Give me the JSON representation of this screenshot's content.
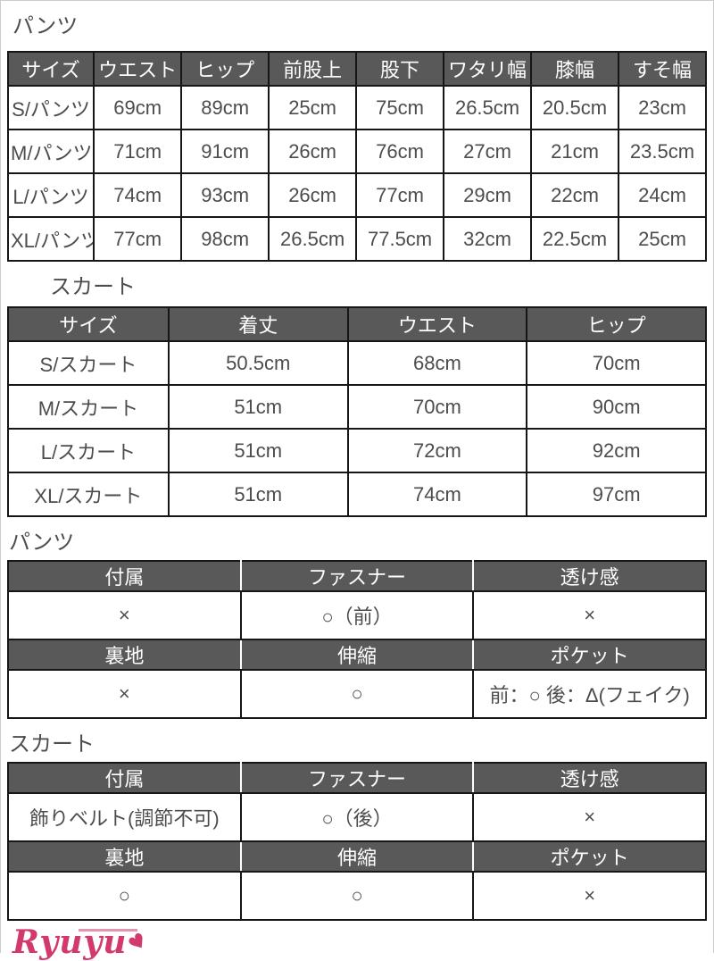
{
  "colors": {
    "header_bg": "#595959",
    "header_text": "#ffffff",
    "table_border": "#161616",
    "body_text": "#4c4c4c",
    "frame_border": "#cccccc",
    "logo_pink": "#d23a6e"
  },
  "labels": {
    "pants_size": "パンツ",
    "skirt_size": "スカート",
    "pants_detail": "パンツ",
    "skirt_detail": "スカート"
  },
  "pants_size_table": {
    "headers": [
      "サイズ",
      "ウエスト",
      "ヒップ",
      "前股上",
      "股下",
      "ワタリ幅",
      "膝幅",
      "すそ幅"
    ],
    "rows": [
      [
        "S/パンツ",
        "69cm",
        "89cm",
        "25cm",
        "75cm",
        "26.5cm",
        "20.5cm",
        "23cm"
      ],
      [
        "M/パンツ",
        "71cm",
        "91cm",
        "26cm",
        "76cm",
        "27cm",
        "21cm",
        "23.5cm"
      ],
      [
        "L/パンツ",
        "74cm",
        "93cm",
        "26cm",
        "77cm",
        "29cm",
        "22cm",
        "24cm"
      ],
      [
        "XL/パンツ",
        "77cm",
        "98cm",
        "26.5cm",
        "77.5cm",
        "32cm",
        "22.5cm",
        "25cm"
      ]
    ]
  },
  "skirt_size_table": {
    "headers": [
      "サイズ",
      "着丈",
      "ウエスト",
      "ヒップ"
    ],
    "rows": [
      [
        "S/スカート",
        "50.5cm",
        "68cm",
        "70cm"
      ],
      [
        "M/スカート",
        "51cm",
        "70cm",
        "90cm"
      ],
      [
        "L/スカート",
        "51cm",
        "72cm",
        "92cm"
      ],
      [
        "XL/スカート",
        "51cm",
        "74cm",
        "97cm"
      ]
    ]
  },
  "pants_detail_table": {
    "rows": [
      {
        "type": "header",
        "cells": [
          "付属",
          "ファスナー",
          "透け感"
        ]
      },
      {
        "type": "value",
        "cells": [
          "×",
          "○（前）",
          "×"
        ]
      },
      {
        "type": "header",
        "cells": [
          "裏地",
          "伸縮",
          "ポケット"
        ]
      },
      {
        "type": "value",
        "cells": [
          "×",
          "○",
          "前：○ 後：Δ(フェイク)"
        ]
      }
    ]
  },
  "skirt_detail_table": {
    "rows": [
      {
        "type": "header",
        "cells": [
          "付属",
          "ファスナー",
          "透け感"
        ]
      },
      {
        "type": "value",
        "cells": [
          "飾りベルト(調節不可)",
          "○（後）",
          "×"
        ]
      },
      {
        "type": "header",
        "cells": [
          "裏地",
          "伸縮",
          "ポケット"
        ]
      },
      {
        "type": "value",
        "cells": [
          "○",
          "○",
          "×"
        ]
      }
    ]
  },
  "logo": {
    "text": "Ryuyu",
    "butterfly_glyph": "♥"
  }
}
